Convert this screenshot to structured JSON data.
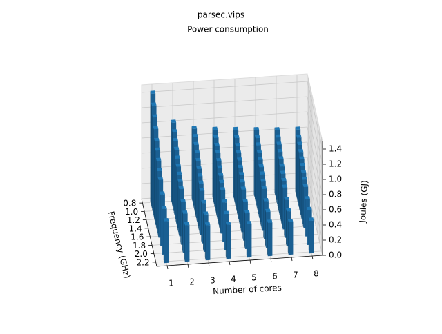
{
  "chart_data": {
    "type": "bar3d",
    "title": "parsec.vips",
    "subtitle": "Power consumption",
    "x_label": "Number of cores",
    "y_label": "Frequency (GHz)",
    "z_label": "Joules (GJ)",
    "x": [
      1,
      2,
      3,
      4,
      5,
      6,
      7,
      8
    ],
    "y": [
      0.8,
      0.9,
      1.0,
      1.1,
      1.2,
      1.3,
      1.4,
      1.5,
      1.6,
      1.8,
      2.0,
      2.2
    ],
    "values": [
      [
        1.45,
        1.35,
        1.25,
        1.15,
        1.05,
        0.98,
        0.9,
        0.82,
        0.76,
        0.68,
        0.6,
        0.55
      ],
      [
        1.05,
        0.98,
        0.92,
        0.86,
        0.8,
        0.75,
        0.7,
        0.66,
        0.62,
        0.56,
        0.52,
        0.48
      ],
      [
        0.95,
        0.9,
        0.85,
        0.8,
        0.75,
        0.7,
        0.66,
        0.62,
        0.58,
        0.53,
        0.49,
        0.46
      ],
      [
        0.92,
        0.87,
        0.82,
        0.78,
        0.73,
        0.69,
        0.65,
        0.61,
        0.57,
        0.52,
        0.48,
        0.45
      ],
      [
        0.9,
        0.85,
        0.8,
        0.76,
        0.72,
        0.68,
        0.64,
        0.6,
        0.56,
        0.51,
        0.47,
        0.44
      ],
      [
        0.88,
        0.83,
        0.79,
        0.75,
        0.71,
        0.67,
        0.63,
        0.59,
        0.55,
        0.5,
        0.47,
        0.44
      ],
      [
        0.86,
        0.82,
        0.78,
        0.74,
        0.7,
        0.66,
        0.62,
        0.58,
        0.55,
        0.5,
        0.46,
        0.43
      ],
      [
        0.85,
        0.8,
        0.76,
        0.72,
        0.68,
        0.65,
        0.61,
        0.58,
        0.54,
        0.49,
        0.46,
        0.43
      ]
    ],
    "color": "#1f77b4",
    "xlim": [
      0.5,
      8.5
    ],
    "ylim": [
      0.7,
      2.3
    ],
    "zlim": [
      0,
      1.5
    ],
    "xticks": [
      1,
      2,
      3,
      4,
      5,
      6,
      7,
      8
    ],
    "yticks": [
      0.8,
      {
        "value": 1.0,
        "label": "1.0"
      },
      1.2,
      1.4,
      1.6,
      1.8,
      {
        "value": 2.0,
        "label": "2.0"
      },
      2.2
    ],
    "zticks": [
      {
        "value": 0,
        "label": "0.0"
      },
      0.2,
      0.4,
      0.6,
      0.8,
      {
        "value": 1.0,
        "label": "1.0"
      },
      1.2,
      1.4
    ],
    "grid": true
  }
}
